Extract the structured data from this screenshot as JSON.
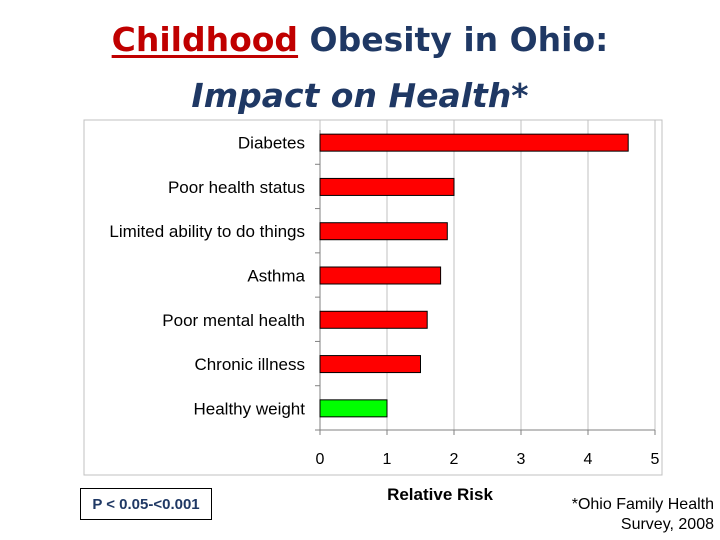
{
  "header": {
    "title_accent": "Childhood",
    "title_rest": " Obesity in Ohio:",
    "subtitle": "Impact on Health*"
  },
  "chart_data": {
    "type": "bar",
    "orientation": "horizontal",
    "categories": [
      "Diabetes",
      "Poor health status",
      "Limited ability to do things",
      "Asthma",
      "Poor mental health",
      "Chronic illness",
      "Healthy weight"
    ],
    "values": [
      4.6,
      2.0,
      1.9,
      1.8,
      1.6,
      1.5,
      1.0
    ],
    "bar_colors": [
      "#ff0000",
      "#ff0000",
      "#ff0000",
      "#ff0000",
      "#ff0000",
      "#ff0000",
      "#00ff00"
    ],
    "xlabel": "Relative Risk",
    "xlim": [
      0,
      5
    ],
    "xticks": [
      "0",
      "1",
      "2",
      "3",
      "4",
      "5"
    ],
    "grid": true
  },
  "footer": {
    "p_value": "P < 0.05-<0.001",
    "source_line1": "*Ohio Family Health",
    "source_line2": "Survey, 2008"
  }
}
